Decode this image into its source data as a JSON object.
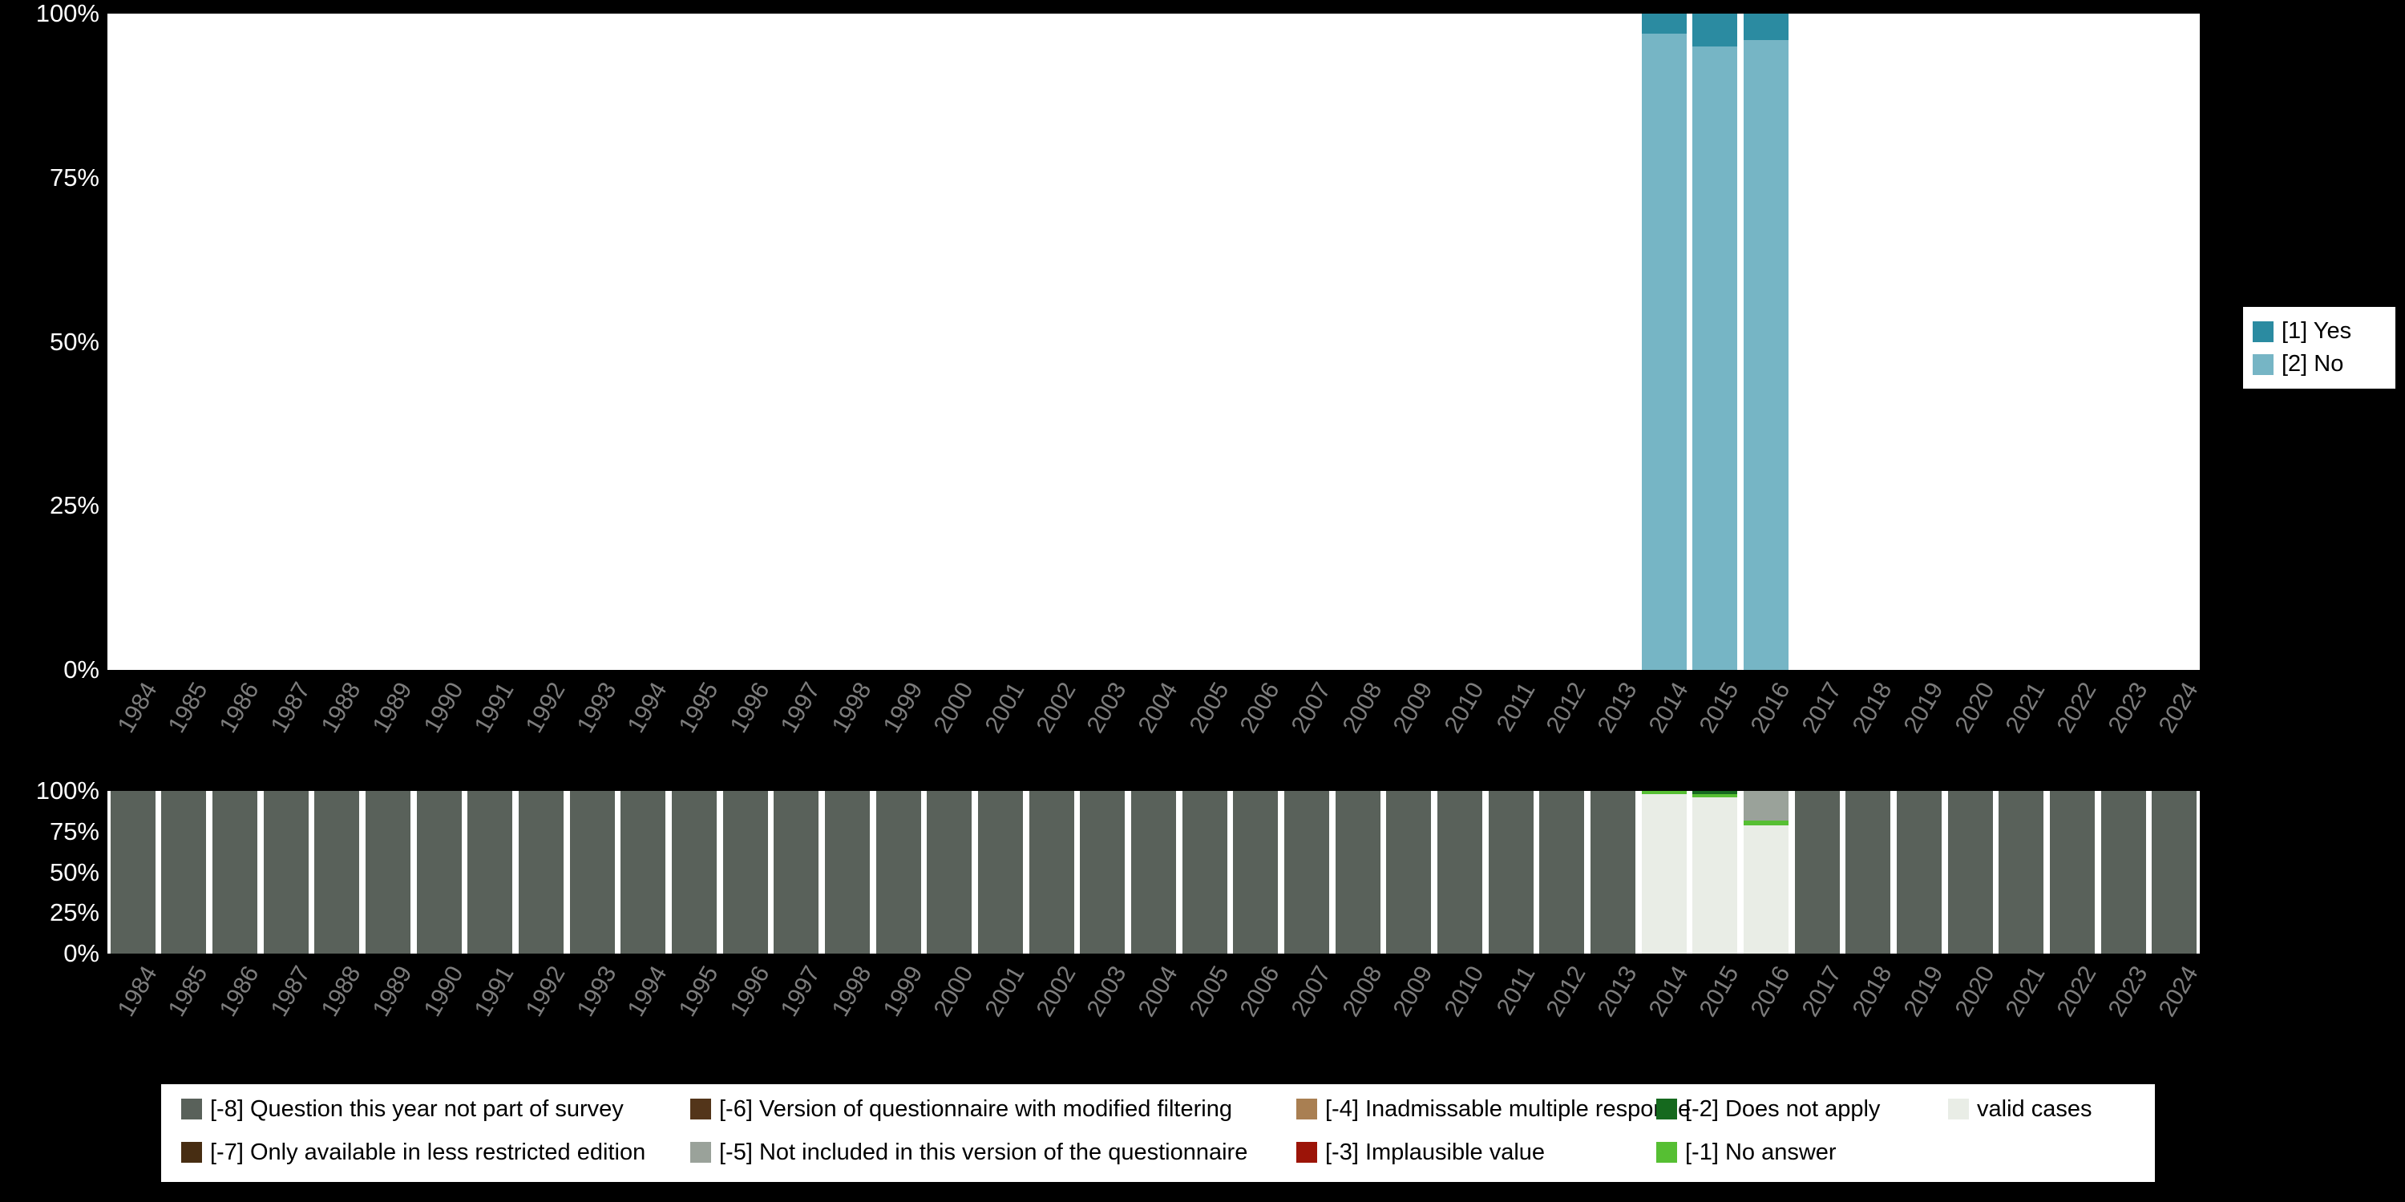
{
  "colors": {
    "background": "#000000",
    "panel_bg": "#ffffff",
    "axis_tick_text": "#ffffff",
    "year_label_text": "#7d7d7d",
    "legend_bg": "#ffffff",
    "legend_text": "#000000",
    "yes": "#2b8ba1",
    "no": "#76b5c5",
    "m8": "#59615a",
    "m7": "#472d12",
    "m6": "#53351a",
    "m5": "#9aa29a",
    "m4": "#a97f52",
    "m3": "#9c1408",
    "m2": "#15691e",
    "m1": "#56bf33",
    "valid": "#e9ede6"
  },
  "years": [
    "1984",
    "1985",
    "1986",
    "1987",
    "1988",
    "1989",
    "1990",
    "1991",
    "1992",
    "1993",
    "1994",
    "1995",
    "1996",
    "1997",
    "1998",
    "1999",
    "2000",
    "2001",
    "2002",
    "2003",
    "2004",
    "2005",
    "2006",
    "2007",
    "2008",
    "2009",
    "2010",
    "2011",
    "2012",
    "2013",
    "2014",
    "2015",
    "2016",
    "2017",
    "2018",
    "2019",
    "2020",
    "2021",
    "2022",
    "2023",
    "2024"
  ],
  "y_ticks": [
    "0%",
    "25%",
    "50%",
    "75%",
    "100%"
  ],
  "chart_data": [
    {
      "id": "responses-by-year",
      "type": "bar",
      "stacked": true,
      "x_categories_ref": "years",
      "ylim": [
        0,
        100
      ],
      "y_tick_labels": [
        "0%",
        "25%",
        "50%",
        "75%",
        "100%"
      ],
      "legend_position": "right",
      "note": "Series listed bottom-to-top of stack. Values are percent of year total. Years not present in values have no bar (no data).",
      "series": [
        {
          "name": "[2] No",
          "colorKey": "no",
          "default": 0,
          "values": {
            "2014": 97,
            "2015": 95,
            "2016": 96
          }
        },
        {
          "name": "[1] Yes",
          "colorKey": "yes",
          "default": 0,
          "values": {
            "2014": 3,
            "2015": 5,
            "2016": 4
          }
        }
      ]
    },
    {
      "id": "missing-values-by-year",
      "type": "bar",
      "stacked": true,
      "x_categories_ref": "years",
      "ylim": [
        0,
        100
      ],
      "y_tick_labels": [
        "0%",
        "25%",
        "50%",
        "75%",
        "100%"
      ],
      "legend_position": "bottom",
      "note": "Series listed bottom-to-top of stack. Values are percent of year total.",
      "series": [
        {
          "name": "valid cases",
          "colorKey": "valid",
          "default": 0,
          "values": {
            "2014": 98,
            "2015": 96,
            "2016": 79
          }
        },
        {
          "name": "[-1] No answer",
          "colorKey": "m1",
          "default": 0,
          "values": {
            "2014": 2,
            "2015": 2,
            "2016": 3
          }
        },
        {
          "name": "[-2] Does not apply",
          "colorKey": "m2",
          "default": 0,
          "values": {
            "2015": 2
          }
        },
        {
          "name": "[-3] Implausible value",
          "colorKey": "m3",
          "default": 0,
          "values": {}
        },
        {
          "name": "[-4] Inadmissable multiple response",
          "colorKey": "m4",
          "default": 0,
          "values": {}
        },
        {
          "name": "[-5] Not included in this version of the questionnaire",
          "colorKey": "m5",
          "default": 0,
          "values": {
            "2016": 18
          }
        },
        {
          "name": "[-6] Version of questionnaire with modified filtering",
          "colorKey": "m6",
          "default": 0,
          "values": {}
        },
        {
          "name": "[-7] Only available in less restricted edition",
          "colorKey": "m7",
          "default": 0,
          "values": {}
        },
        {
          "name": "[-8] Question this year not part of survey",
          "colorKey": "m8",
          "default": 100,
          "values": {
            "2014": 0,
            "2015": 0,
            "2016": 0
          }
        }
      ]
    }
  ],
  "legend_yesno": {
    "entries": [
      {
        "label": "[1] Yes",
        "colorKey": "yes"
      },
      {
        "label": "[2] No",
        "colorKey": "no"
      }
    ]
  },
  "legend_missing": {
    "columns": [
      [
        {
          "label": "[-8] Question this year not part of survey",
          "colorKey": "m8"
        },
        {
          "label": "[-7] Only available in less restricted edition",
          "colorKey": "m7"
        }
      ],
      [
        {
          "label": "[-6] Version of questionnaire with modified filtering",
          "colorKey": "m6"
        },
        {
          "label": "[-5] Not included in this version of the questionnaire",
          "colorKey": "m5"
        }
      ],
      [
        {
          "label": "[-4] Inadmissable multiple response",
          "colorKey": "m4"
        },
        {
          "label": "[-3] Implausible value",
          "colorKey": "m3"
        }
      ],
      [
        {
          "label": "[-2] Does not apply",
          "colorKey": "m2"
        },
        {
          "label": "[-1] No answer",
          "colorKey": "m1"
        }
      ],
      [
        {
          "label": "valid cases",
          "colorKey": "valid"
        }
      ]
    ]
  }
}
